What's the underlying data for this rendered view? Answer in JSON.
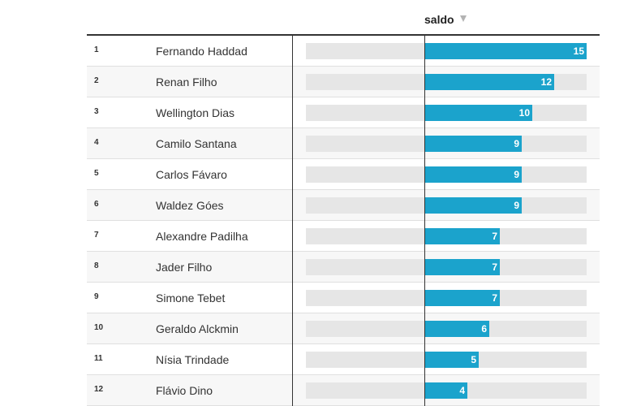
{
  "header": {
    "column_title": "saldo"
  },
  "colors": {
    "bar": "#1ba3cc",
    "track": "#e6e6e6"
  },
  "chart_data": {
    "type": "bar",
    "orientation": "horizontal",
    "xlim": [
      0,
      15
    ],
    "value_column": "saldo",
    "ranks": [
      "1",
      "2",
      "3",
      "4",
      "5",
      "6",
      "7",
      "8",
      "9",
      "10",
      "11",
      "12"
    ],
    "categories": [
      "Fernando Haddad",
      "Renan Filho",
      "Wellington Dias",
      "Camilo Santana",
      "Carlos Fávaro",
      "Waldez Góes",
      "Alexandre Padilha",
      "Jader Filho",
      "Simone Tebet",
      "Geraldo Alckmin",
      "Nísia Trindade",
      "Flávio Dino"
    ],
    "values": [
      15,
      12,
      10,
      9,
      9,
      9,
      7,
      7,
      7,
      6,
      5,
      4
    ]
  }
}
